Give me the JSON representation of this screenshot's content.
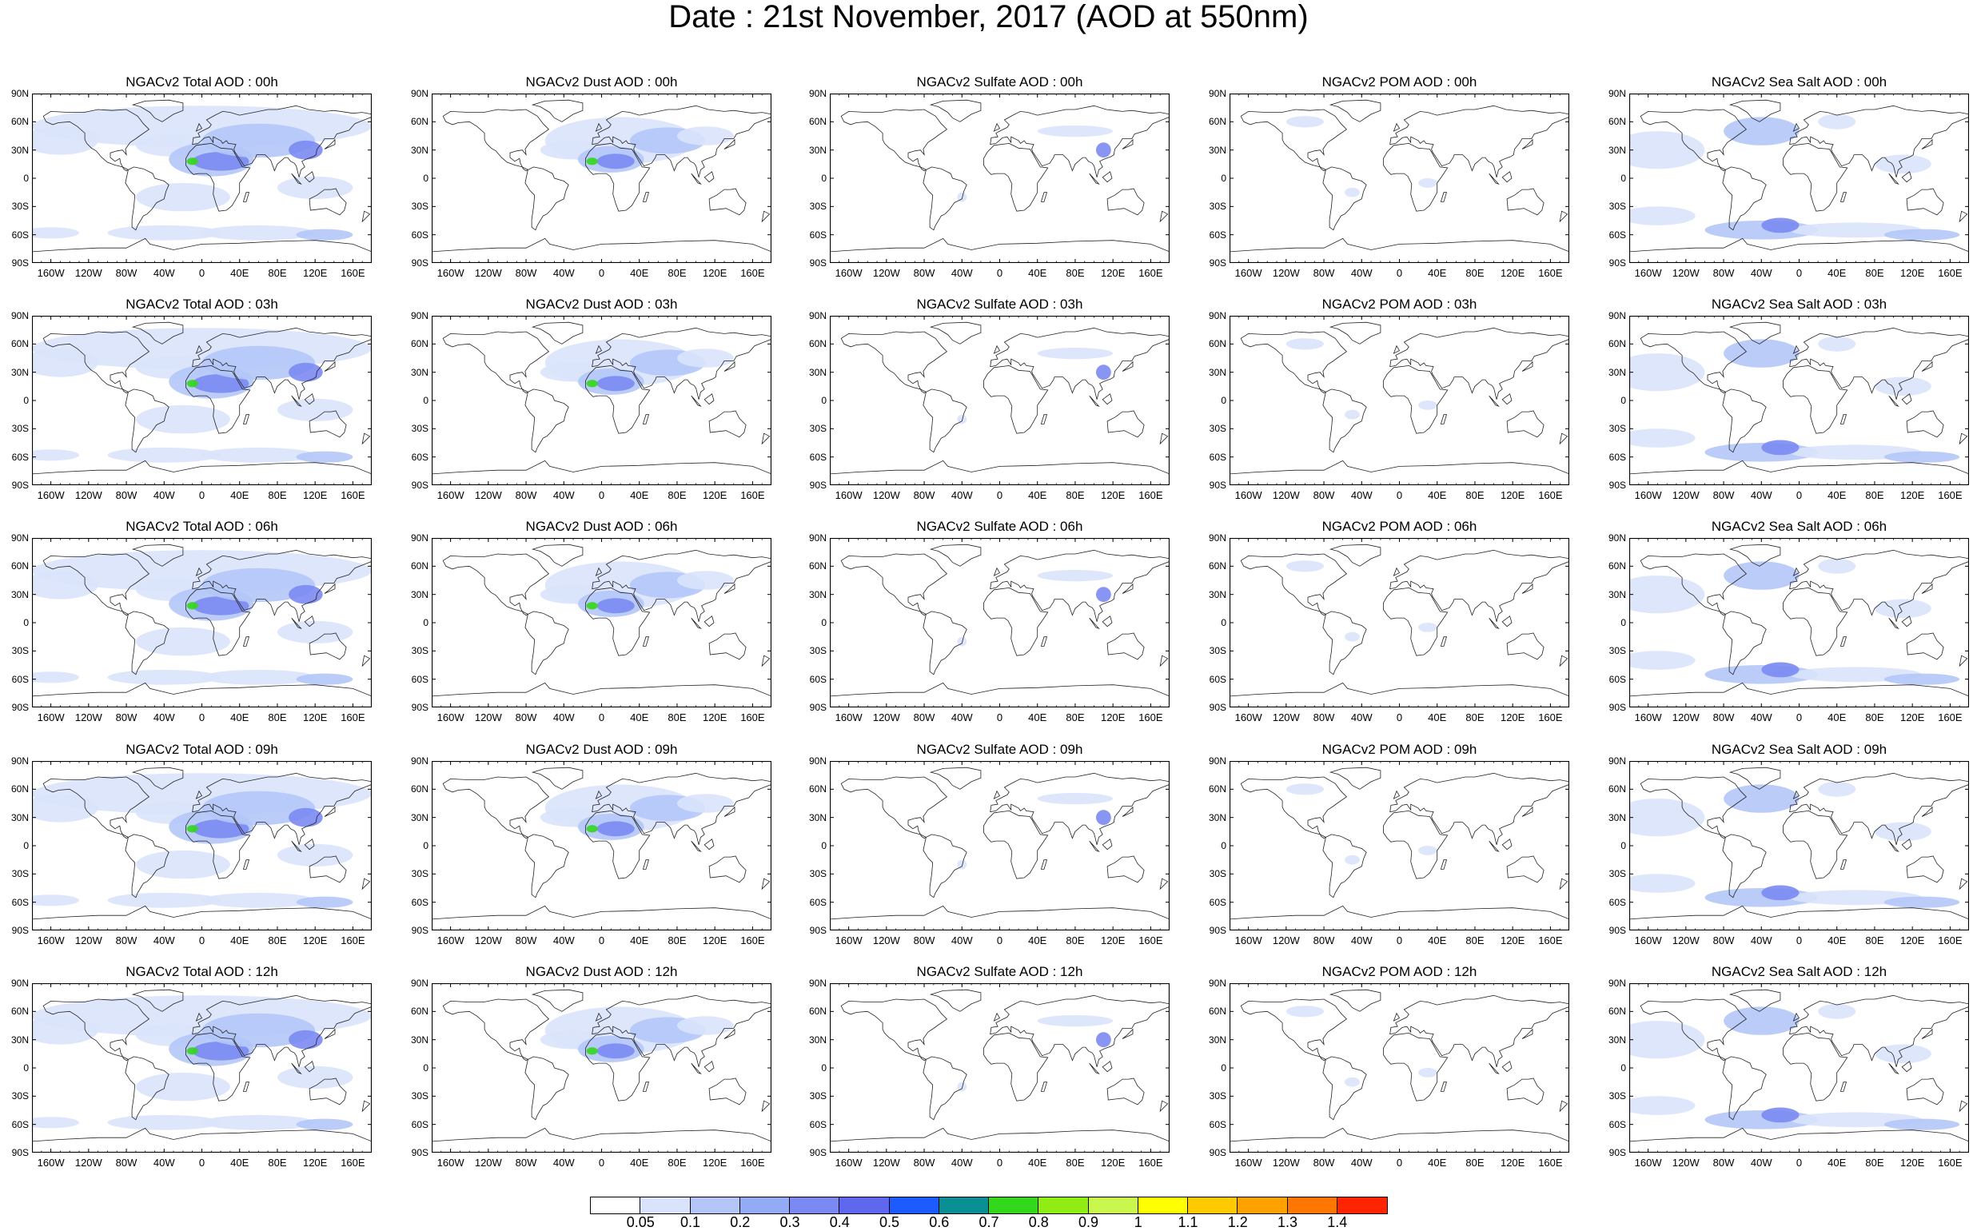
{
  "page": {
    "title": "Date : 21st November, 2017 (AOD at 550nm)"
  },
  "panels": [
    [
      "NGACv2 Total AOD : 00h",
      "NGACv2 Dust AOD : 00h",
      "NGACv2 Sulfate AOD : 00h",
      "NGACv2 POM AOD : 00h",
      "NGACv2 Sea Salt AOD : 00h"
    ],
    [
      "NGACv2 Total AOD : 03h",
      "NGACv2 Dust AOD : 03h",
      "NGACv2 Sulfate AOD : 03h",
      "NGACv2 POM AOD : 03h",
      "NGACv2 Sea Salt AOD : 03h"
    ],
    [
      "NGACv2 Total AOD : 06h",
      "NGACv2 Dust AOD : 06h",
      "NGACv2 Sulfate AOD : 06h",
      "NGACv2 POM AOD : 06h",
      "NGACv2 Sea Salt AOD : 06h"
    ],
    [
      "NGACv2 Total AOD : 09h",
      "NGACv2 Dust AOD : 09h",
      "NGACv2 Sulfate AOD : 09h",
      "NGACv2 POM AOD : 09h",
      "NGACv2 Sea Salt  AOD : 09h"
    ],
    [
      "NGACv2 Total AOD :  12h",
      "NGACv2 Dust AOD : 12h",
      "NGACv2 Sulfate AOD : 12h",
      "NGACv2 POM  AOD : 12h",
      "NGACv2 Sea Salt AOD : 12h"
    ]
  ],
  "axes": {
    "lat_labels": [
      "90N",
      "60N",
      "30N",
      "0",
      "30S",
      "60S",
      "90S"
    ],
    "lon_labels": [
      "160W",
      "120W",
      "80W",
      "40W",
      "0",
      "40E",
      "80E",
      "120E",
      "160E"
    ]
  },
  "colorbar": {
    "labels": [
      "0.05",
      "0.1",
      "0.2",
      "0.3",
      "0.4",
      "0.5",
      "0.6",
      "0.7",
      "0.8",
      "0.9",
      "1",
      "1.1",
      "1.2",
      "1.3",
      "1.4"
    ],
    "colors": [
      "#ffffff",
      "#d9e3fb",
      "#b4c6f8",
      "#93aaf5",
      "#7b8af2",
      "#5e67ee",
      "#1c5bff",
      "#0a8f94",
      "#33d71b",
      "#8fec14",
      "#c9f74d",
      "#ffff00",
      "#ffca00",
      "#ffa200",
      "#ff7600",
      "#ff2400"
    ]
  },
  "fields": {
    "colors": {
      "light": "#d9e3fb",
      "mid": "#b4c6f8",
      "deep": "#7b8af2",
      "hot": "#33d71b"
    }
  }
}
